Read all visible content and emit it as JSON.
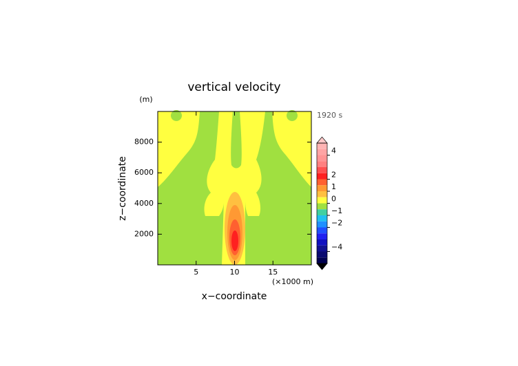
{
  "chart_data": {
    "type": "contour",
    "title": "vertical velocity",
    "x_label": "x−coordinate",
    "y_label": "z−coordinate",
    "x_unit": "(×1000 m)",
    "y_unit": "(m)",
    "time_label": "1920 s",
    "xlim": [
      0,
      20
    ],
    "ylim": [
      0,
      10000
    ],
    "xticks": [
      5,
      10,
      15
    ],
    "yticks": [
      2000,
      4000,
      6000,
      8000
    ],
    "colorbar": {
      "clim": [
        -5,
        5
      ],
      "ticks": [
        4,
        2,
        1,
        0,
        {
          "value": -1,
          "label": "−1"
        },
        {
          "value": -2,
          "label": "−2"
        },
        {
          "value": -4,
          "label": "−4"
        }
      ],
      "colors": [
        "#ffb4b4",
        "#ffa4a4",
        "#ff9494",
        "#ff8080",
        "#ff5050",
        "#ff2020",
        "#ff6030",
        "#ff9933",
        "#ffc040",
        "#ffff40",
        "#a0e040",
        "#40d0a0",
        "#20c0f0",
        "#2090ff",
        "#2050ff",
        "#2020f0",
        "#1010c0",
        "#101090",
        "#0a0a70",
        "#000050"
      ],
      "over_color": "#ffc8c8",
      "under_color": "#000000"
    }
  }
}
